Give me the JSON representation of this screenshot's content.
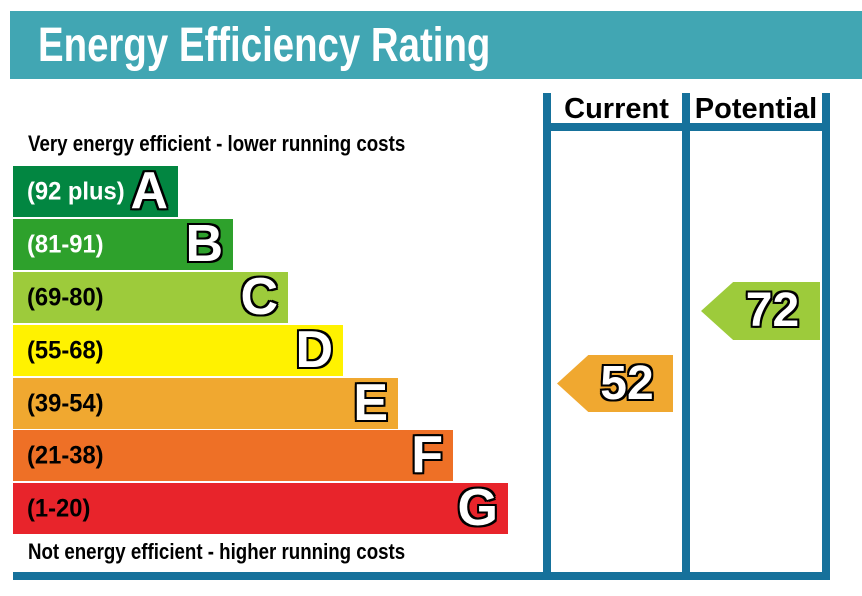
{
  "title": "Energy Efficiency Rating",
  "table": {
    "current_label": "Current",
    "potential_label": "Potential"
  },
  "captions": {
    "top": "Very energy efficient - lower running costs",
    "bottom": "Not energy efficient - higher running costs"
  },
  "colors": {
    "header_bg": "#41a6b3",
    "table_border": "#16719b",
    "title_text": "#ffffff"
  },
  "chart_data": {
    "type": "epc_energy_rating_bands",
    "title": "Energy Efficiency Rating",
    "bands": [
      {
        "letter": "A",
        "range_label": "(92 plus)",
        "score_min": 92,
        "score_max": 100,
        "color": "#028641",
        "label_color": "#ffffff"
      },
      {
        "letter": "B",
        "range_label": "(81-91)",
        "score_min": 81,
        "score_max": 91,
        "color": "#2ea12c",
        "label_color": "#ffffff"
      },
      {
        "letter": "C",
        "range_label": "(69-80)",
        "score_min": 69,
        "score_max": 80,
        "color": "#9dcb3b",
        "label_color": "#000000"
      },
      {
        "letter": "D",
        "range_label": "(55-68)",
        "score_min": 55,
        "score_max": 68,
        "color": "#fff200",
        "label_color": "#000000"
      },
      {
        "letter": "E",
        "range_label": "(39-54)",
        "score_min": 39,
        "score_max": 54,
        "color": "#f0a830",
        "label_color": "#000000"
      },
      {
        "letter": "F",
        "range_label": "(21-38)",
        "score_min": 21,
        "score_max": 38,
        "color": "#ee7026",
        "label_color": "#000000"
      },
      {
        "letter": "G",
        "range_label": "(1-20)",
        "score_min": 1,
        "score_max": 20,
        "color": "#e8242b",
        "label_color": "#000000"
      }
    ],
    "current": {
      "value": 52,
      "band": "E",
      "arrow_color": "#f0a830"
    },
    "potential": {
      "value": 72,
      "band": "C",
      "arrow_color": "#9dcb3b"
    }
  }
}
